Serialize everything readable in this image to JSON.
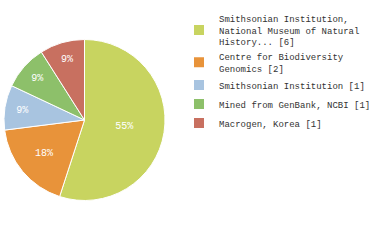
{
  "chart_data": {
    "type": "pie",
    "categories": [
      "Smithsonian Institution,\nNational Museum of Natural\nHistory... [6]",
      "Centre for Biodiversity\nGenomics [2]",
      "Smithsonian Institution [1]",
      "Mined from GenBank, NCBI [1]",
      "Macrogen, Korea [1]"
    ],
    "values": [
      55,
      18,
      9,
      9,
      9
    ],
    "value_labels": [
      "55%",
      "18%",
      "9%",
      "9%",
      "9%"
    ],
    "colors": [
      "#c8d460",
      "#e8933a",
      "#a8c4e0",
      "#8dc06a",
      "#c87060"
    ],
    "data_labels": true,
    "legend": "upper right"
  }
}
